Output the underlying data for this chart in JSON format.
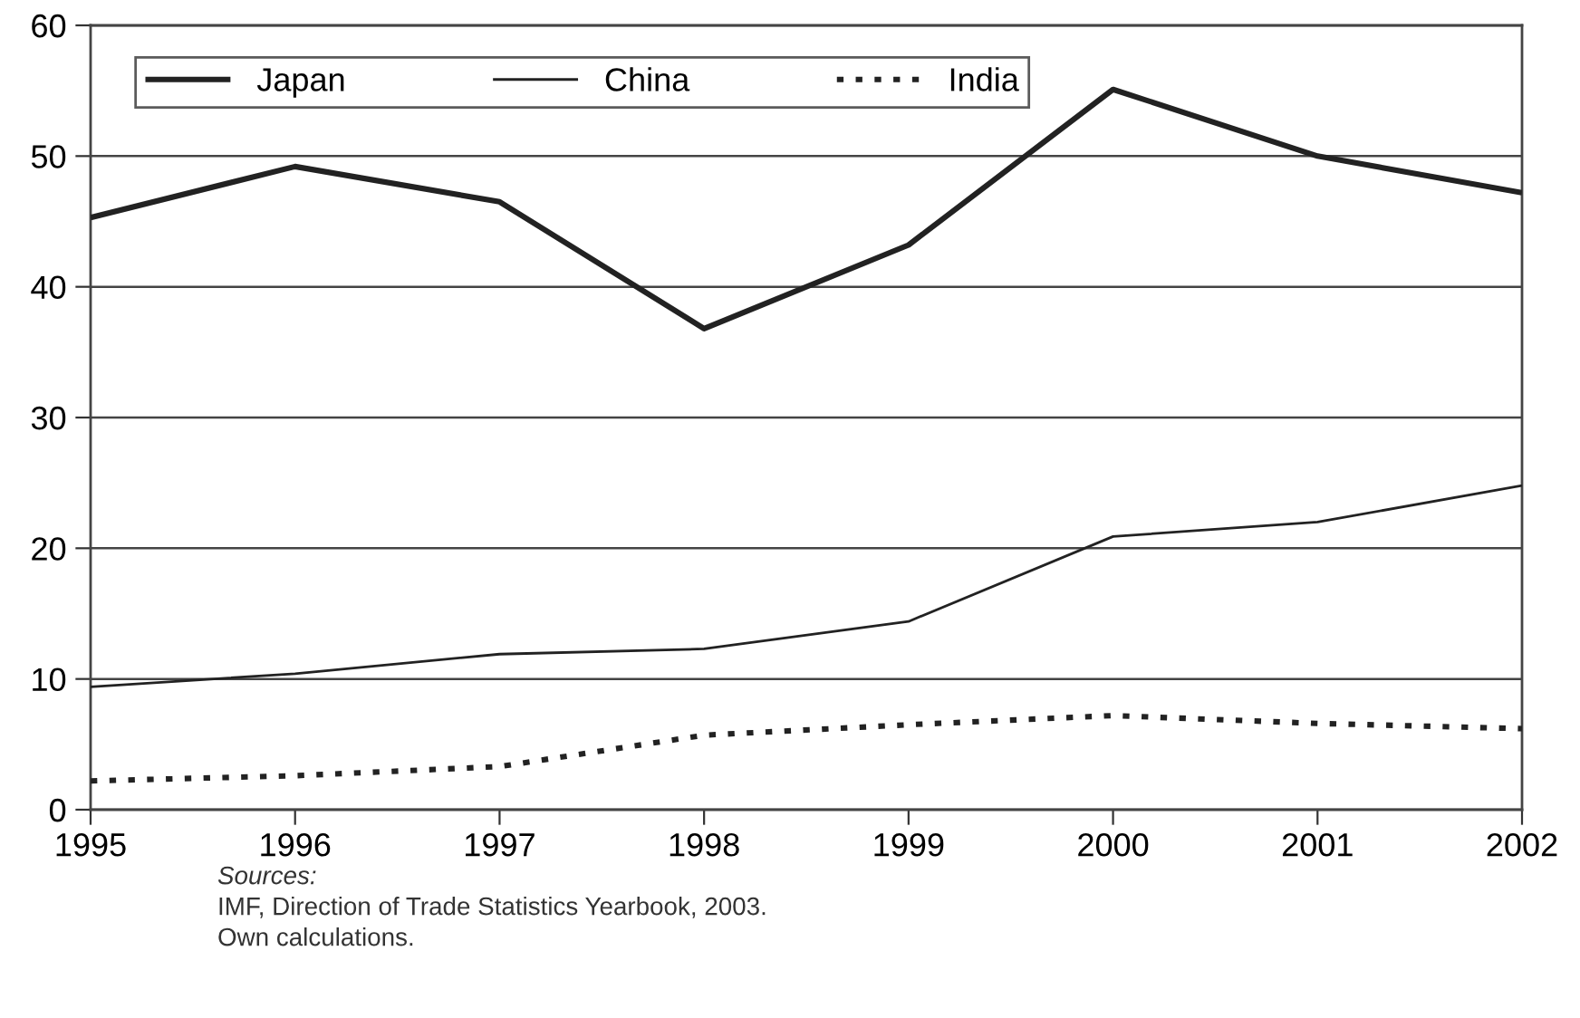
{
  "chart_data": {
    "type": "line",
    "x": [
      1995,
      1996,
      1997,
      1998,
      1999,
      2000,
      2001,
      2002
    ],
    "series": [
      {
        "name": "Japan",
        "color": "#222222",
        "line_style": "solid",
        "values": [
          45.3,
          49.2,
          46.5,
          36.8,
          43.2,
          55.1,
          50.0,
          47.2
        ]
      },
      {
        "name": "China",
        "color": "#222222",
        "line_style": "solid",
        "values": [
          9.4,
          10.4,
          11.9,
          12.3,
          14.4,
          20.9,
          22.0,
          24.8
        ]
      },
      {
        "name": "India",
        "color": "#222222",
        "line_style": "dotted",
        "values": [
          2.2,
          2.6,
          3.3,
          5.7,
          6.5,
          7.2,
          6.6,
          6.2
        ]
      }
    ],
    "xlim": [
      1995,
      2002
    ],
    "xticks": [
      1995,
      1996,
      1997,
      1998,
      1999,
      2000,
      2001,
      2002
    ],
    "ylim": [
      0,
      60
    ],
    "yticks": [
      0,
      10,
      20,
      30,
      40,
      50,
      60
    ],
    "grid": "y",
    "legend": "top left",
    "marker": "none",
    "annotations": [
      "Sources:",
      "IMF, Direction of Trade Statistics Yearbook, 2003.",
      "Own calculations."
    ]
  }
}
